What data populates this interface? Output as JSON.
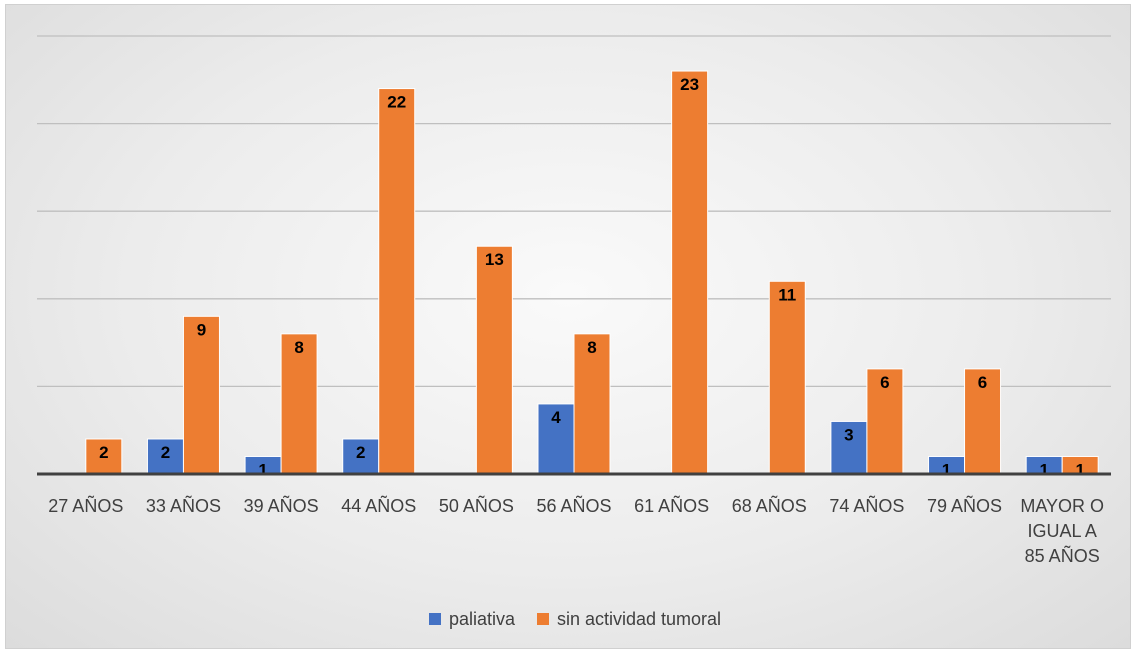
{
  "chart_data": {
    "type": "bar",
    "title": "",
    "xlabel": "",
    "ylabel": "",
    "ylim": [
      0,
      25
    ],
    "grid": true,
    "legend_position": "bottom",
    "categories": [
      "27 AÑOS",
      "33 AÑOS",
      "39 AÑOS",
      "44 AÑOS",
      "50 AÑOS",
      "56 AÑOS",
      "61 AÑOS",
      "68 AÑOS",
      "74 AÑOS",
      "79 AÑOS",
      "MAYOR O IGUAL A 85 AÑOS"
    ],
    "series": [
      {
        "name": "paliativa",
        "color": "#4472c4",
        "values": [
          null,
          2,
          1,
          2,
          null,
          4,
          null,
          null,
          3,
          1,
          1
        ]
      },
      {
        "name": "sin actividad tumoral",
        "color": "#ed7d31",
        "values": [
          2,
          9,
          8,
          22,
          13,
          8,
          23,
          11,
          6,
          6,
          1
        ]
      }
    ]
  }
}
